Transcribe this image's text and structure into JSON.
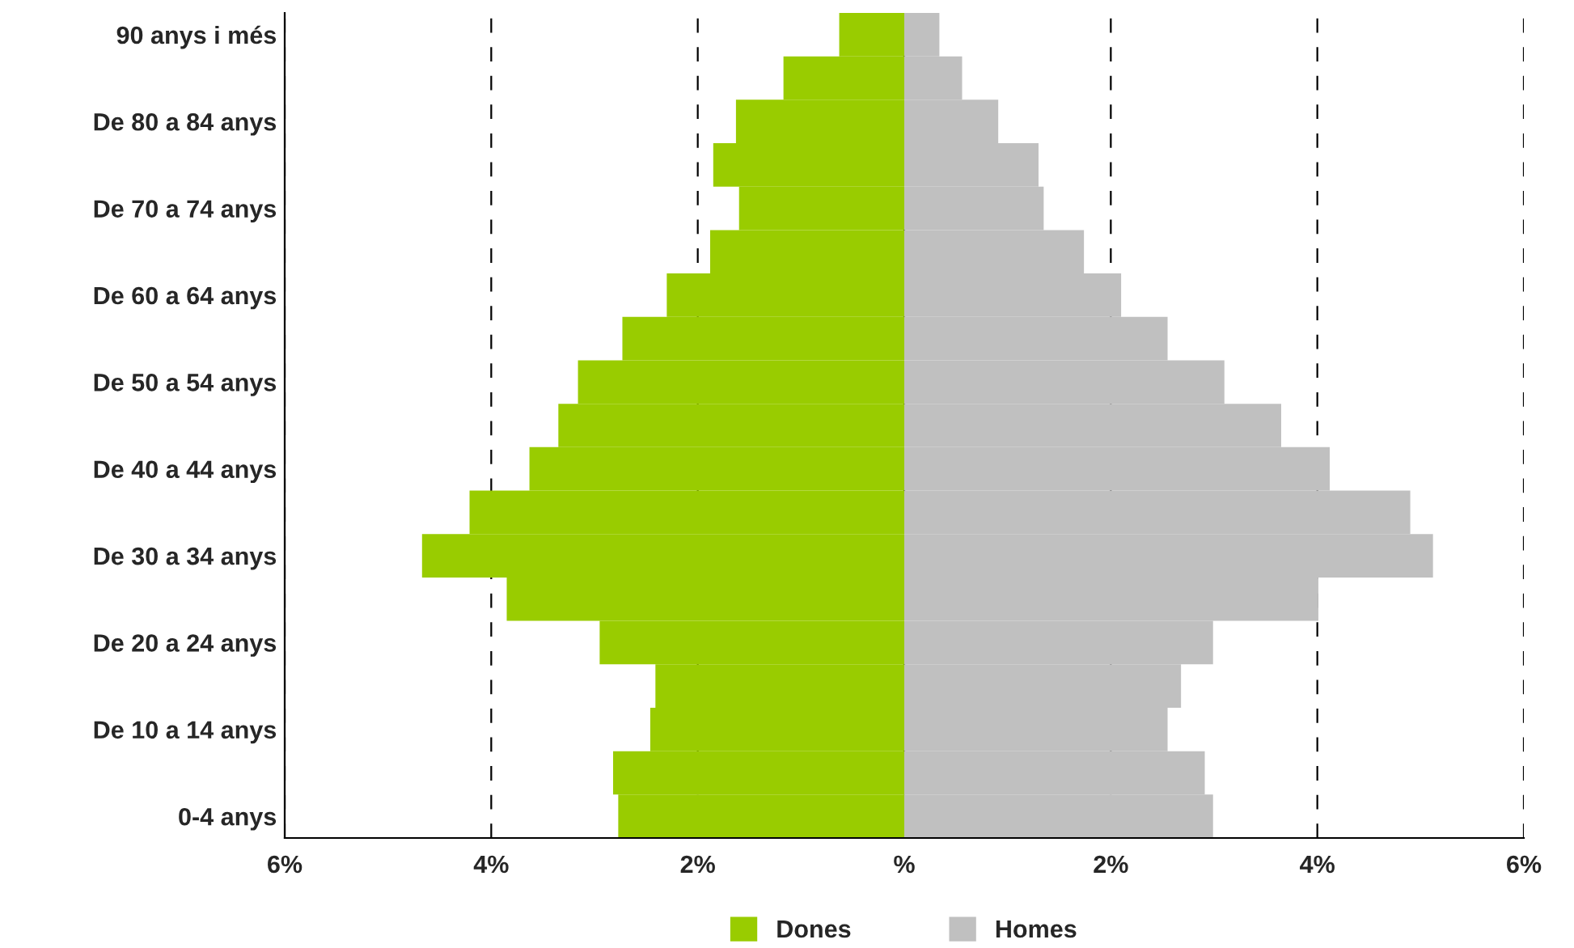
{
  "chart_data": {
    "type": "bar",
    "orientation": "horizontal",
    "categories": [
      "90 anys i més",
      null,
      "De 80 a 84 anys",
      null,
      "De 70 a 74 anys",
      null,
      "De 60 a 64 anys",
      null,
      "De 50 a 54 anys",
      null,
      "De 40 a 44 anys",
      null,
      "De 30 a 34 anys",
      null,
      "De 20 a 24 anys",
      null,
      "De 10 a 14 anys",
      null,
      "0-4 anys"
    ],
    "series": [
      {
        "name": "Dones",
        "color": "#99cc00",
        "values": [
          -0.63,
          -1.17,
          -1.63,
          -1.85,
          -1.6,
          -1.88,
          -2.3,
          -2.73,
          -3.16,
          -3.35,
          -3.63,
          -4.21,
          -4.67,
          -3.85,
          -2.95,
          -2.41,
          -2.46,
          -2.82,
          -2.77
        ]
      },
      {
        "name": "Homes",
        "color": "#c0c0c0",
        "values": [
          0.34,
          0.56,
          0.91,
          1.3,
          1.35,
          1.74,
          2.1,
          2.55,
          3.1,
          3.65,
          4.12,
          4.9,
          5.12,
          4.01,
          2.99,
          2.68,
          2.55,
          2.91,
          2.99
        ]
      }
    ],
    "xlim": [
      -6,
      6
    ],
    "xticks": [
      {
        "value": -6,
        "label": "6%"
      },
      {
        "value": -4,
        "label": "4%"
      },
      {
        "value": -2,
        "label": "2%"
      },
      {
        "value": 0,
        "label": "%"
      },
      {
        "value": 2,
        "label": "2%"
      },
      {
        "value": 4,
        "label": "4%"
      },
      {
        "value": 6,
        "label": "6%"
      }
    ],
    "grid": "x",
    "legend": "bottom",
    "stacked": true
  }
}
